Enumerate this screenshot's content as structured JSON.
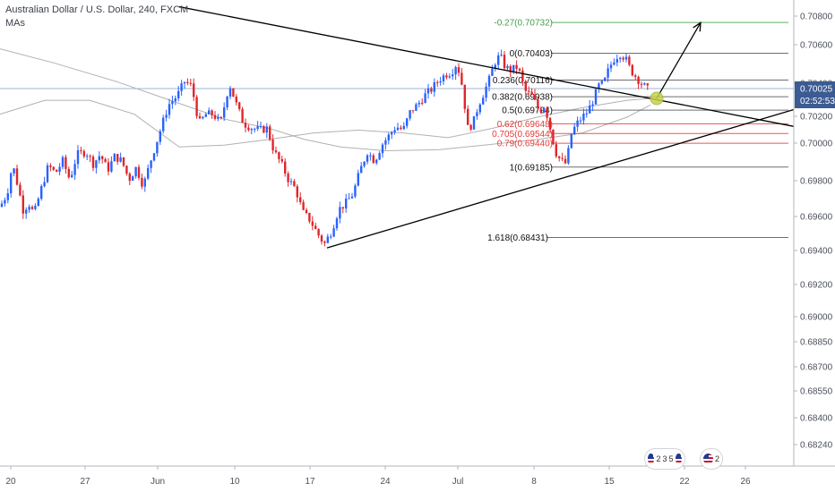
{
  "header": {
    "title": "Australian Dollar / U.S. Dollar, 240, FXCM",
    "indicator": "MAs"
  },
  "colors": {
    "up": "#2962ff",
    "down": "#e0252b",
    "trendline": "#000000",
    "fib_neutral": "#000000",
    "fib_red": "#e53935",
    "fib_green": "#43a047",
    "ma": "#9e9e9e",
    "price_line": "#9fb5d4",
    "current_price_bg": "#3b5b92",
    "touch_marker": "#c5d14a"
  },
  "chart_data": {
    "type": "candlestick",
    "y_axis": {
      "min": 0.6815,
      "max": 0.709,
      "ticks": [
        "0.70800",
        "0.70600",
        "0.70400",
        "0.70200",
        "0.70000",
        "0.69800",
        "0.69600",
        "0.69400",
        "0.69200",
        "0.69000",
        "0.68850",
        "0.68700",
        "0.68550",
        "0.68400",
        "0.68240"
      ]
    },
    "x_axis": {
      "ticks": [
        "20",
        "27",
        "Jun",
        "10",
        "17",
        "24",
        "Jul",
        "8",
        "15",
        "22",
        "26"
      ]
    },
    "current_price": "0.70025",
    "countdown": "02:52:53",
    "price_path": [
      {
        "t": 0,
        "p": 0.6876
      },
      {
        "t": 8,
        "p": 0.689
      },
      {
        "t": 14,
        "p": 0.6922
      },
      {
        "t": 20,
        "p": 0.6898
      },
      {
        "t": 26,
        "p": 0.6872
      },
      {
        "t": 32,
        "p": 0.688
      },
      {
        "t": 38,
        "p": 0.6868
      },
      {
        "t": 46,
        "p": 0.6895
      },
      {
        "t": 54,
        "p": 0.692
      },
      {
        "t": 62,
        "p": 0.6912
      },
      {
        "t": 70,
        "p": 0.6925
      },
      {
        "t": 78,
        "p": 0.6905
      },
      {
        "t": 86,
        "p": 0.6932
      },
      {
        "t": 96,
        "p": 0.6935
      },
      {
        "t": 104,
        "p": 0.6922
      },
      {
        "t": 112,
        "p": 0.6932
      },
      {
        "t": 120,
        "p": 0.6915
      },
      {
        "t": 128,
        "p": 0.693
      },
      {
        "t": 136,
        "p": 0.6925
      },
      {
        "t": 144,
        "p": 0.6905
      },
      {
        "t": 152,
        "p": 0.6918
      },
      {
        "t": 160,
        "p": 0.6898
      },
      {
        "t": 168,
        "p": 0.6925
      },
      {
        "t": 178,
        "p": 0.6955
      },
      {
        "t": 188,
        "p": 0.6985
      },
      {
        "t": 198,
        "p": 0.6995
      },
      {
        "t": 206,
        "p": 0.701
      },
      {
        "t": 214,
        "p": 0.7005
      },
      {
        "t": 222,
        "p": 0.6965
      },
      {
        "t": 230,
        "p": 0.6975
      },
      {
        "t": 238,
        "p": 0.6975
      },
      {
        "t": 246,
        "p": 0.6965
      },
      {
        "t": 256,
        "p": 0.7008
      },
      {
        "t": 264,
        "p": 0.6985
      },
      {
        "t": 272,
        "p": 0.6965
      },
      {
        "t": 282,
        "p": 0.696
      },
      {
        "t": 290,
        "p": 0.6958
      },
      {
        "t": 298,
        "p": 0.696
      },
      {
        "t": 306,
        "p": 0.6935
      },
      {
        "t": 314,
        "p": 0.6922
      },
      {
        "t": 322,
        "p": 0.6905
      },
      {
        "t": 330,
        "p": 0.6895
      },
      {
        "t": 338,
        "p": 0.687
      },
      {
        "t": 346,
        "p": 0.6862
      },
      {
        "t": 354,
        "p": 0.6848
      },
      {
        "t": 362,
        "p": 0.6836
      },
      {
        "t": 370,
        "p": 0.685
      },
      {
        "t": 378,
        "p": 0.6873
      },
      {
        "t": 386,
        "p": 0.688
      },
      {
        "t": 394,
        "p": 0.689
      },
      {
        "t": 402,
        "p": 0.6915
      },
      {
        "t": 410,
        "p": 0.6935
      },
      {
        "t": 418,
        "p": 0.6925
      },
      {
        "t": 426,
        "p": 0.6942
      },
      {
        "t": 434,
        "p": 0.6952
      },
      {
        "t": 442,
        "p": 0.6962
      },
      {
        "t": 450,
        "p": 0.6958
      },
      {
        "t": 458,
        "p": 0.6978
      },
      {
        "t": 466,
        "p": 0.6985
      },
      {
        "t": 474,
        "p": 0.6995
      },
      {
        "t": 482,
        "p": 0.7002
      },
      {
        "t": 490,
        "p": 0.7012
      },
      {
        "t": 498,
        "p": 0.7018
      },
      {
        "t": 504,
        "p": 0.702
      },
      {
        "t": 510,
        "p": 0.703
      },
      {
        "t": 516,
        "p": 0.7005
      },
      {
        "t": 522,
        "p": 0.696
      },
      {
        "t": 528,
        "p": 0.6965
      },
      {
        "t": 534,
        "p": 0.6985
      },
      {
        "t": 540,
        "p": 0.6998
      },
      {
        "t": 546,
        "p": 0.7012
      },
      {
        "t": 552,
        "p": 0.703
      },
      {
        "t": 558,
        "p": 0.7038
      },
      {
        "t": 564,
        "p": 0.7025
      },
      {
        "t": 570,
        "p": 0.7022
      },
      {
        "t": 578,
        "p": 0.7026
      },
      {
        "t": 586,
        "p": 0.7
      },
      {
        "t": 594,
        "p": 0.6994
      },
      {
        "t": 602,
        "p": 0.6978
      },
      {
        "t": 608,
        "p": 0.6985
      },
      {
        "t": 614,
        "p": 0.696
      },
      {
        "t": 620,
        "p": 0.6935
      },
      {
        "t": 626,
        "p": 0.6925
      },
      {
        "t": 632,
        "p": 0.6922
      },
      {
        "t": 638,
        "p": 0.6955
      },
      {
        "t": 644,
        "p": 0.6965
      },
      {
        "t": 650,
        "p": 0.6972
      },
      {
        "t": 656,
        "p": 0.6978
      },
      {
        "t": 662,
        "p": 0.699
      },
      {
        "t": 668,
        "p": 0.7005
      },
      {
        "t": 674,
        "p": 0.7008
      },
      {
        "t": 680,
        "p": 0.7025
      },
      {
        "t": 686,
        "p": 0.7035
      },
      {
        "t": 692,
        "p": 0.704
      },
      {
        "t": 698,
        "p": 0.7035
      },
      {
        "t": 704,
        "p": 0.7022
      },
      {
        "t": 710,
        "p": 0.7015
      },
      {
        "t": 716,
        "p": 0.7008
      },
      {
        "t": 722,
        "p": 0.7002
      },
      {
        "t": 726,
        "p": 0.7
      }
    ],
    "moving_averages": [
      {
        "name": "MA1",
        "points": [
          [
            0,
            0.7045
          ],
          [
            60,
            0.703
          ],
          [
            130,
            0.701
          ],
          [
            190,
            0.699
          ],
          [
            250,
            0.697
          ],
          [
            300,
            0.696
          ],
          [
            340,
            0.6948
          ],
          [
            380,
            0.694
          ],
          [
            430,
            0.6936
          ],
          [
            490,
            0.6937
          ],
          [
            540,
            0.6942
          ],
          [
            600,
            0.6948
          ],
          [
            650,
            0.6955
          ],
          [
            700,
            0.6972
          ],
          [
            726,
            0.6985
          ]
        ]
      },
      {
        "name": "MA2",
        "points": [
          [
            0,
            0.6975
          ],
          [
            50,
            0.699
          ],
          [
            100,
            0.699
          ],
          [
            150,
            0.6975
          ],
          [
            200,
            0.694
          ],
          [
            250,
            0.6942
          ],
          [
            300,
            0.6948
          ],
          [
            350,
            0.6955
          ],
          [
            400,
            0.6958
          ],
          [
            450,
            0.6955
          ],
          [
            500,
            0.695
          ],
          [
            550,
            0.696
          ],
          [
            600,
            0.6972
          ],
          [
            650,
            0.6982
          ],
          [
            700,
            0.699
          ],
          [
            726,
            0.6992
          ]
        ]
      }
    ],
    "trendlines": [
      {
        "name": "descending-resistance",
        "from": [
          200,
          0.709
        ],
        "to": [
          886,
          0.6962
        ]
      },
      {
        "name": "ascending-support",
        "from": [
          365,
          0.6832
        ],
        "to": [
          886,
          0.698
        ]
      }
    ],
    "projection_arrow": {
      "from": [
        733,
        0.6992
      ],
      "to": [
        782,
        0.7073
      ]
    },
    "touch_point": [
      733,
      0.6992
    ],
    "fib_levels": [
      {
        "label": "-0.27(0.70732)",
        "value": 0.70732,
        "color": "green",
        "x_from": 565,
        "x_to": 880
      },
      {
        "label": "0(0.70403)",
        "value": 0.70403,
        "color": "black",
        "x_from": 565,
        "x_to": 880
      },
      {
        "label": "0.236(0.70116)",
        "value": 0.70116,
        "color": "black",
        "x_from": 565,
        "x_to": 880
      },
      {
        "label": "0.382(0.69938)",
        "value": 0.69938,
        "color": "black",
        "x_from": 565,
        "x_to": 880
      },
      {
        "label": "0.5(0.69794)",
        "value": 0.69794,
        "color": "black",
        "x_from": 565,
        "x_to": 880
      },
      {
        "label": "0.62(0.69648)",
        "value": 0.69648,
        "color": "red",
        "x_from": 565,
        "x_to": 880
      },
      {
        "label": "0.705(0.69544)",
        "value": 0.69544,
        "color": "red",
        "x_from": 565,
        "x_to": 880
      },
      {
        "label": "0.79(0.69440)",
        "value": 0.6944,
        "color": "red",
        "x_from": 565,
        "x_to": 880
      },
      {
        "label": "1(0.69185)",
        "value": 0.69185,
        "color": "black",
        "x_from": 565,
        "x_to": 880
      },
      {
        "label": "1.618(0.68431)",
        "value": 0.68431,
        "color": "black",
        "x_from": 560,
        "x_to": 880
      }
    ]
  },
  "events": [
    {
      "label_a": "2",
      "label_b": "3",
      "label_c": "5"
    },
    {
      "label_a": "2"
    }
  ]
}
